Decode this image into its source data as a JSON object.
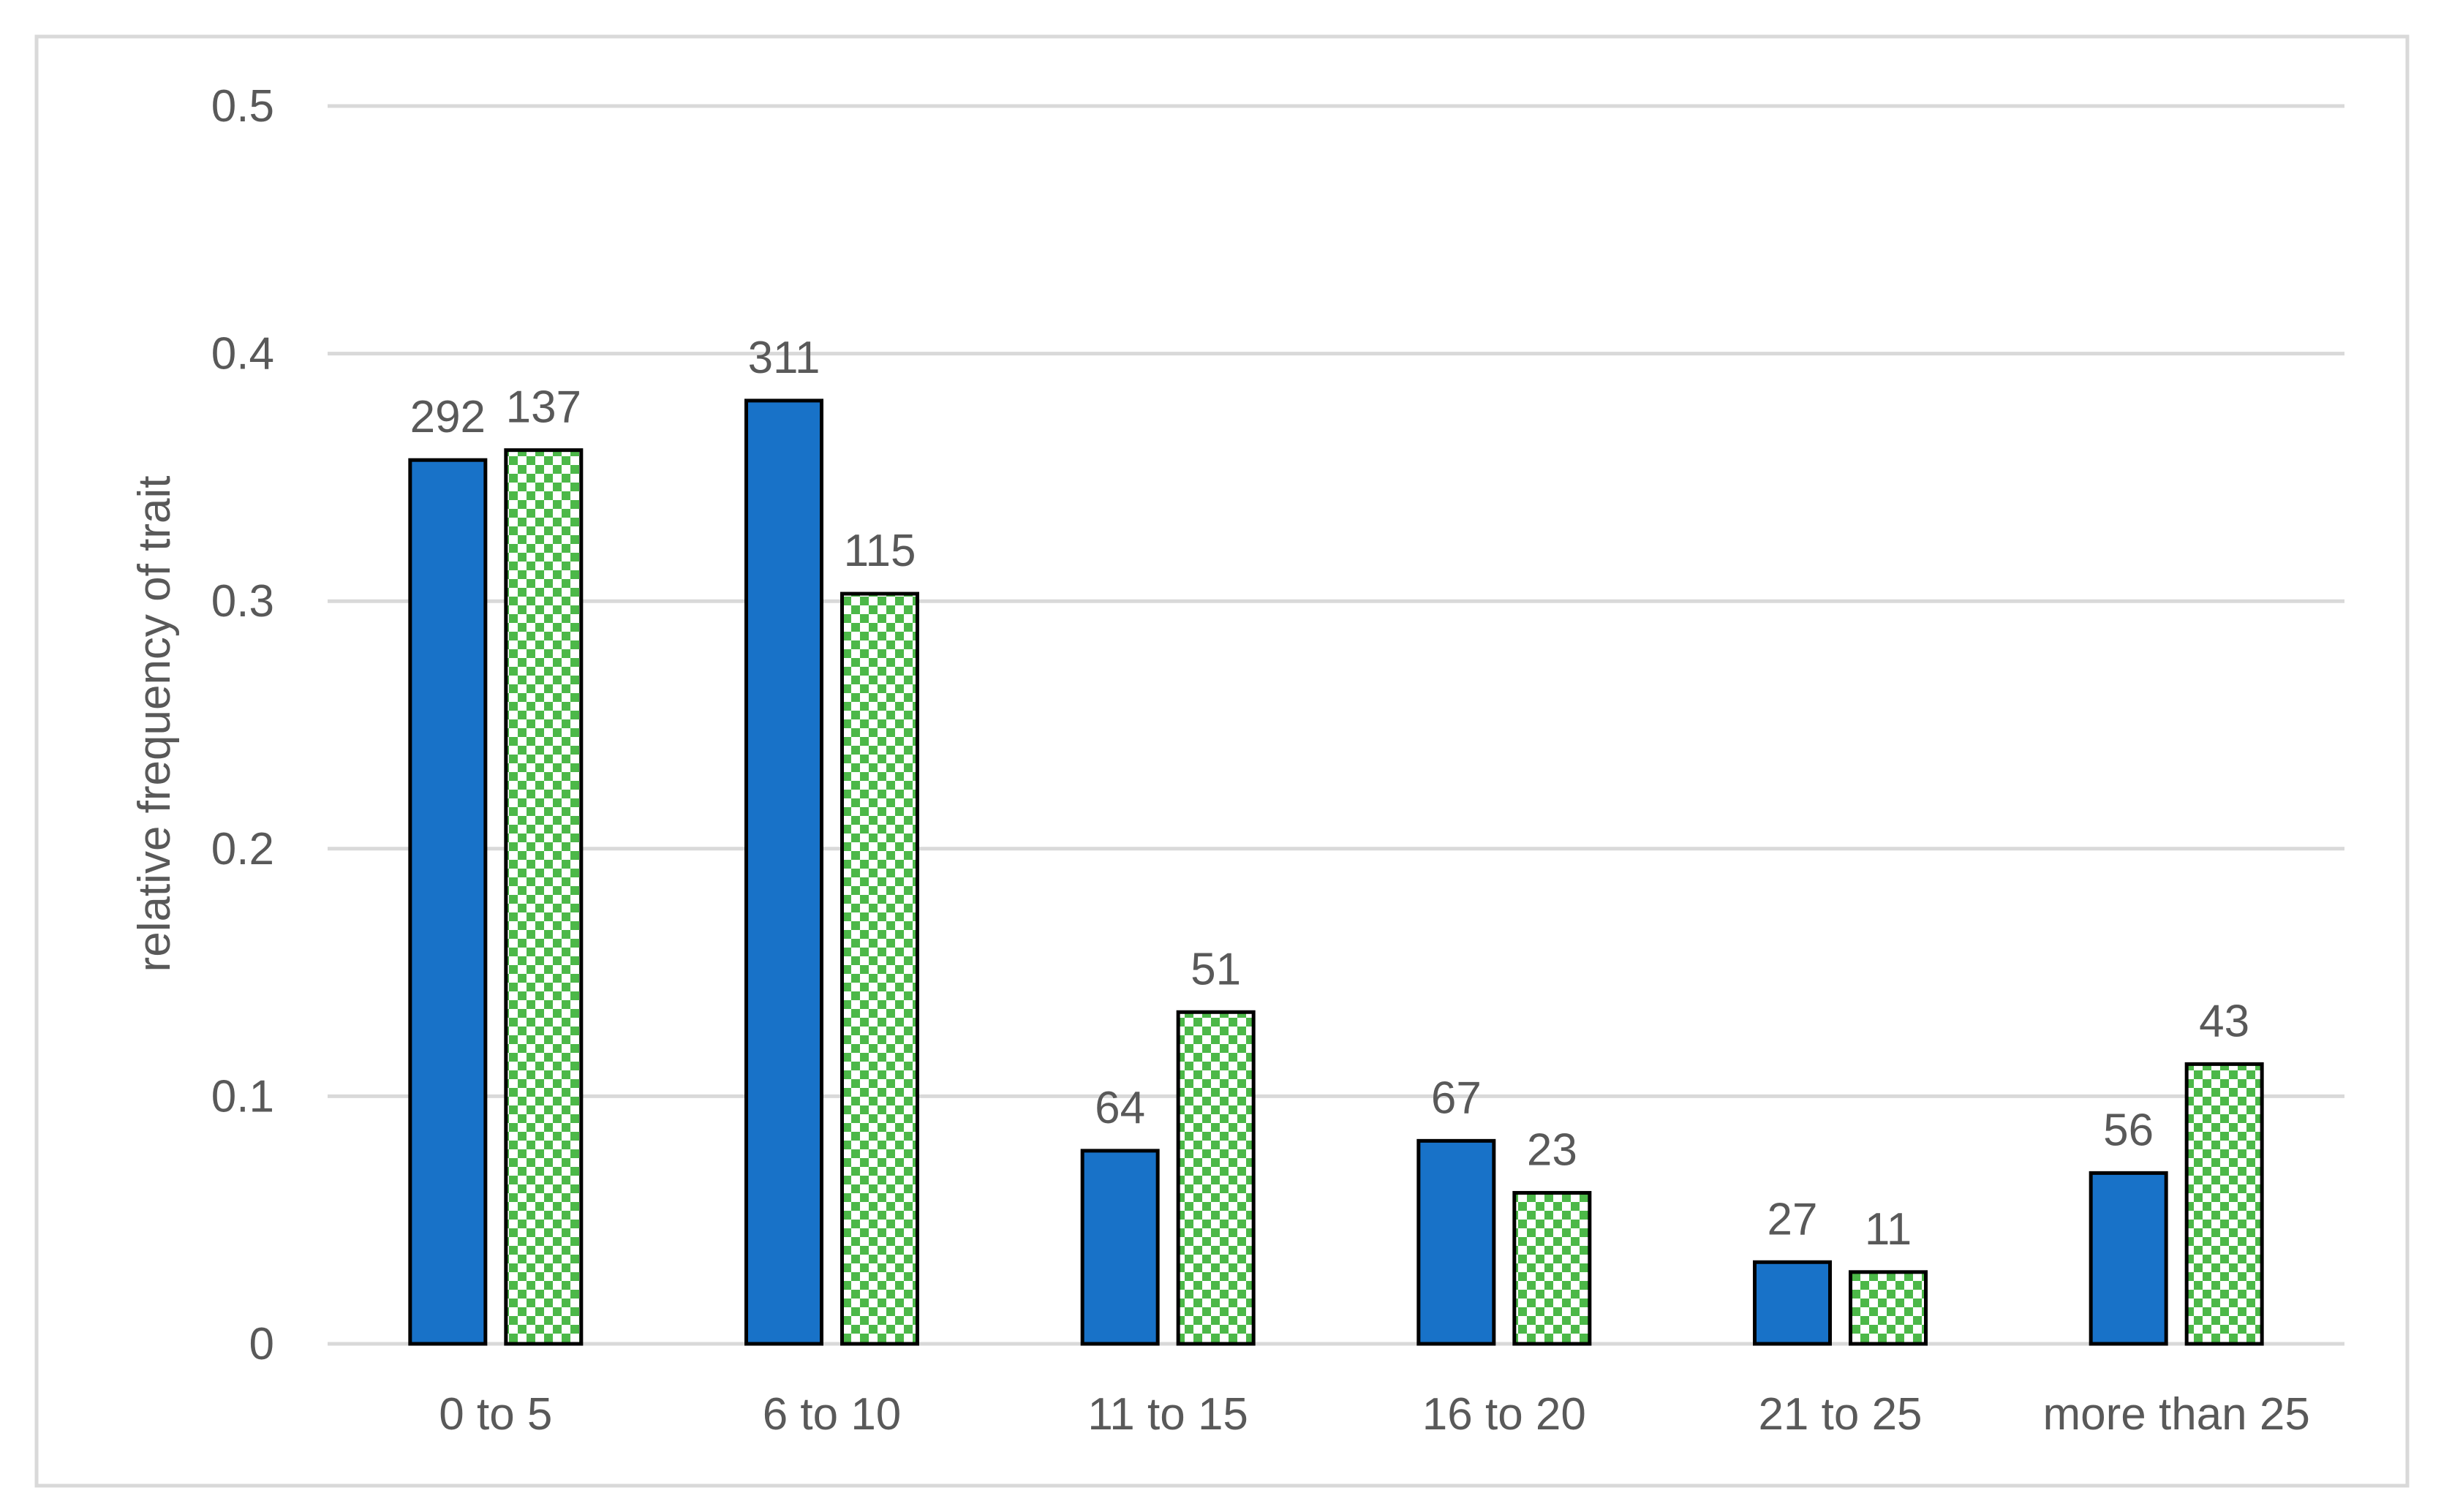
{
  "chart_data": {
    "type": "bar",
    "title": "",
    "xlabel": "",
    "ylabel": "relative frequency of trait",
    "ylim": [
      0,
      0.5
    ],
    "yticks": [
      "0",
      "0.1",
      "0.2",
      "0.3",
      "0.4",
      "0.5"
    ],
    "ytick_values": [
      0,
      0.1,
      0.2,
      0.3,
      0.4,
      0.5
    ],
    "grid": true,
    "legend": "none",
    "categories": [
      "0 to 5",
      "6 to 10",
      "11 to 15",
      "16 to 20",
      "21 to 25",
      "more than 25"
    ],
    "series": [
      {
        "fill": "solid",
        "color": "#1872C8",
        "values": [
          0.357,
          0.381,
          0.078,
          0.082,
          0.033,
          0.069
        ],
        "labels": [
          "292",
          "311",
          "64",
          "67",
          "27",
          "56"
        ]
      },
      {
        "fill": "checkered",
        "color": "#4CB848",
        "values": [
          0.361,
          0.303,
          0.134,
          0.061,
          0.029,
          0.113
        ],
        "labels": [
          "137",
          "115",
          "51",
          "23",
          "11",
          "43"
        ]
      }
    ],
    "colors": {
      "gridline": "#D9D9D9",
      "border": "#D9D9D9",
      "text": "#595959",
      "bar_outline": "#000000"
    }
  }
}
